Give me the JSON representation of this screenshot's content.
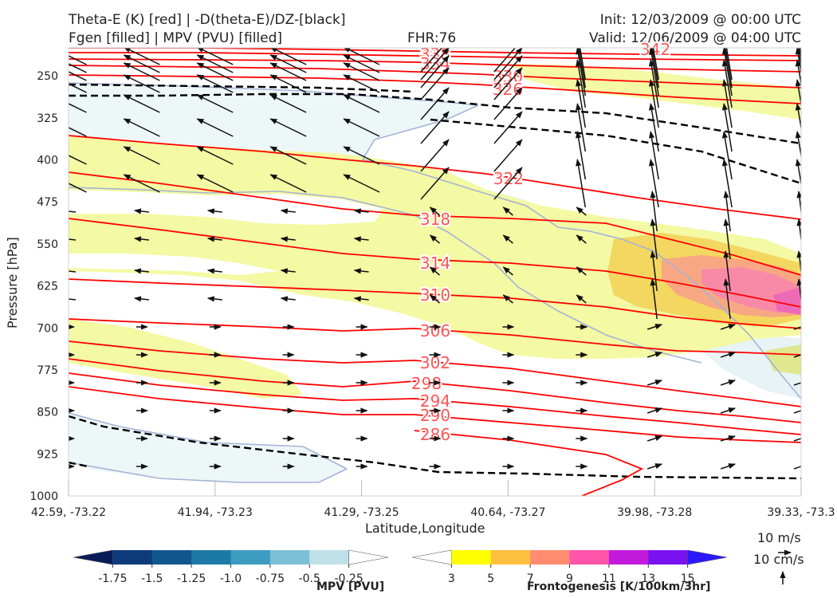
{
  "header": {
    "title_left_1": "Theta-E (K) [red] | -D(theta-E)/DZ-[black]",
    "title_left_2": "Fgen [filled] | MPV (PVU) [filled]",
    "title_center": "FHR:76",
    "title_right_1": "Init: 12/03/2009 @ 00:00 UTC",
    "title_right_2": "Valid: 12/06/2009 @ 04:00 UTC"
  },
  "chart_data": {
    "type": "cross-section",
    "xlabel": "Latitude,Longitude",
    "ylabel": "Pressure [hPa]",
    "x_ticks": [
      "42.59, -73.22",
      "41.94, -73.23",
      "41.29, -73.25",
      "40.64, -73.27",
      "39.98, -73.28",
      "39.33, -73.3"
    ],
    "y_ticks": [
      250,
      325,
      400,
      475,
      550,
      625,
      700,
      775,
      850,
      925,
      1000
    ],
    "ylim": [
      1000,
      200
    ],
    "y_axis_inverted": true,
    "theta_e_color": "#ff0000",
    "theta_e_contour_labels": [
      342,
      338,
      334,
      330,
      326,
      322,
      318,
      314,
      310,
      306,
      302,
      298,
      294,
      290,
      286
    ],
    "dthetae_dz_color": "#000000",
    "dthetae_dz_style": "dashed",
    "wind_reference": {
      "horizontal": "10 m/s",
      "vertical": "10 cm/s"
    },
    "mpv_colorbar": {
      "title": "MPV [PVU]",
      "ticks": [
        "-1.75",
        "-1.5",
        "-1.25",
        "-1.0",
        "-0.75",
        "-0.5",
        "-0.25"
      ],
      "colors": [
        "#081d58",
        "#0c3a7a",
        "#11578f",
        "#1d7aa6",
        "#3e9bc0",
        "#7dbfd6",
        "#bfe0e9",
        "#ffffff"
      ]
    },
    "fgen_colorbar": {
      "title": "Frontogenesis [K/100km/3hr]",
      "ticks": [
        "3",
        "5",
        "7",
        "9",
        "11",
        "13",
        "15"
      ],
      "colors": [
        "#ffffff",
        "#ffff00",
        "#ffc040",
        "#ff8c70",
        "#ff55aa",
        "#c21bdc",
        "#7a12f0",
        "#2b18ff"
      ]
    }
  }
}
